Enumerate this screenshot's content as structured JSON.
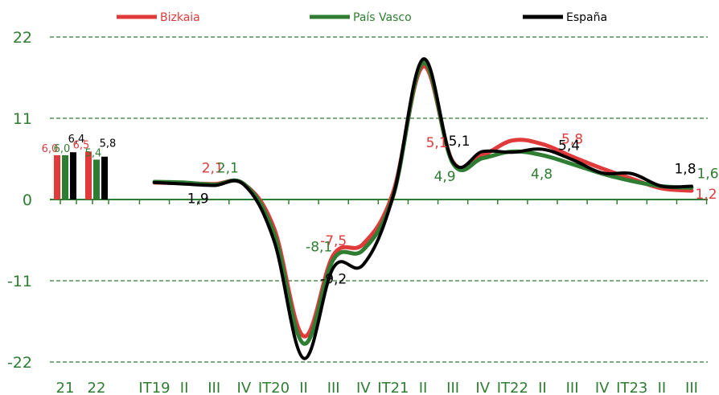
{
  "chart_data": {
    "type": "line",
    "ylim": [
      -22,
      22
    ],
    "yticks": [
      22,
      11,
      0,
      -11,
      -22
    ],
    "grid": true,
    "legend_position": "top",
    "colors": {
      "Bizkaia": "#e03a3a",
      "País Vasco": "#2e7d32",
      "España": "#000000",
      "grid": "#2e7d32",
      "axis": "#2e7d32"
    },
    "legend": [
      "Bizkaia",
      "País Vasco",
      "España"
    ],
    "annual": {
      "categories": [
        "21",
        "22"
      ],
      "series": [
        {
          "name": "Bizkaia",
          "values": [
            6.0,
            6.5
          ]
        },
        {
          "name": "País Vasco",
          "values": [
            6.0,
            5.4
          ]
        },
        {
          "name": "España",
          "values": [
            6.4,
            5.8
          ]
        }
      ],
      "labels": [
        [
          "6,0",
          "6,0",
          "6,4"
        ],
        [
          "6,5",
          "5,4",
          "5,8"
        ]
      ]
    },
    "quarterly": {
      "tick_labels": [
        "IT19",
        "II",
        "III",
        "IV",
        "IT20",
        "II",
        "III",
        "IV",
        "IT21",
        "II",
        "III",
        "IV",
        "IT22",
        "II",
        "III",
        "IV",
        "IT23",
        "II",
        "III"
      ],
      "series": [
        {
          "name": "Bizkaia",
          "values": [
            2.3,
            2.2,
            2.1,
            2.1,
            -3.8,
            -18.5,
            -7.5,
            -6.0,
            1.0,
            18.0,
            5.1,
            6.0,
            8.0,
            7.5,
            5.8,
            4.2,
            2.8,
            1.5,
            1.2
          ]
        },
        {
          "name": "País Vasco",
          "values": [
            2.4,
            2.3,
            2.0,
            2.1,
            -4.5,
            -19.5,
            -8.1,
            -6.8,
            0.5,
            18.5,
            4.9,
            5.6,
            6.5,
            6.0,
            4.8,
            3.5,
            2.5,
            1.8,
            1.6
          ]
        },
        {
          "name": "España",
          "values": [
            2.3,
            2.1,
            1.9,
            2.0,
            -5.5,
            -21.5,
            -9.2,
            -8.8,
            0.5,
            19.0,
            5.1,
            6.5,
            6.4,
            6.8,
            5.4,
            3.6,
            3.5,
            1.8,
            1.8
          ]
        }
      ],
      "data_labels": [
        {
          "series": "Bizkaia",
          "index": 2,
          "text": "2,1"
        },
        {
          "series": "País Vasco",
          "index": 3,
          "text": "2,1"
        },
        {
          "series": "España",
          "index": 2,
          "text": "1,9"
        },
        {
          "series": "Bizkaia",
          "index": 6,
          "text": "-7,5"
        },
        {
          "series": "País Vasco",
          "index": 6,
          "text": "-8,1"
        },
        {
          "series": "España",
          "index": 6,
          "text": "-9,2"
        },
        {
          "series": "Bizkaia",
          "index": 10,
          "text": "5,1"
        },
        {
          "series": "España",
          "index": 10,
          "text": "5,1"
        },
        {
          "series": "País Vasco",
          "index": 10,
          "text": "4,9"
        },
        {
          "series": "Bizkaia",
          "index": 14,
          "text": "5,8"
        },
        {
          "series": "España",
          "index": 14,
          "text": "5,4"
        },
        {
          "series": "País Vasco",
          "index": 14,
          "text": "4,8"
        },
        {
          "series": "España",
          "index": 18,
          "text": "1,8"
        },
        {
          "series": "País Vasco",
          "index": 18,
          "text": "1,6"
        },
        {
          "series": "Bizkaia",
          "index": 18,
          "text": "1,2"
        }
      ]
    }
  }
}
